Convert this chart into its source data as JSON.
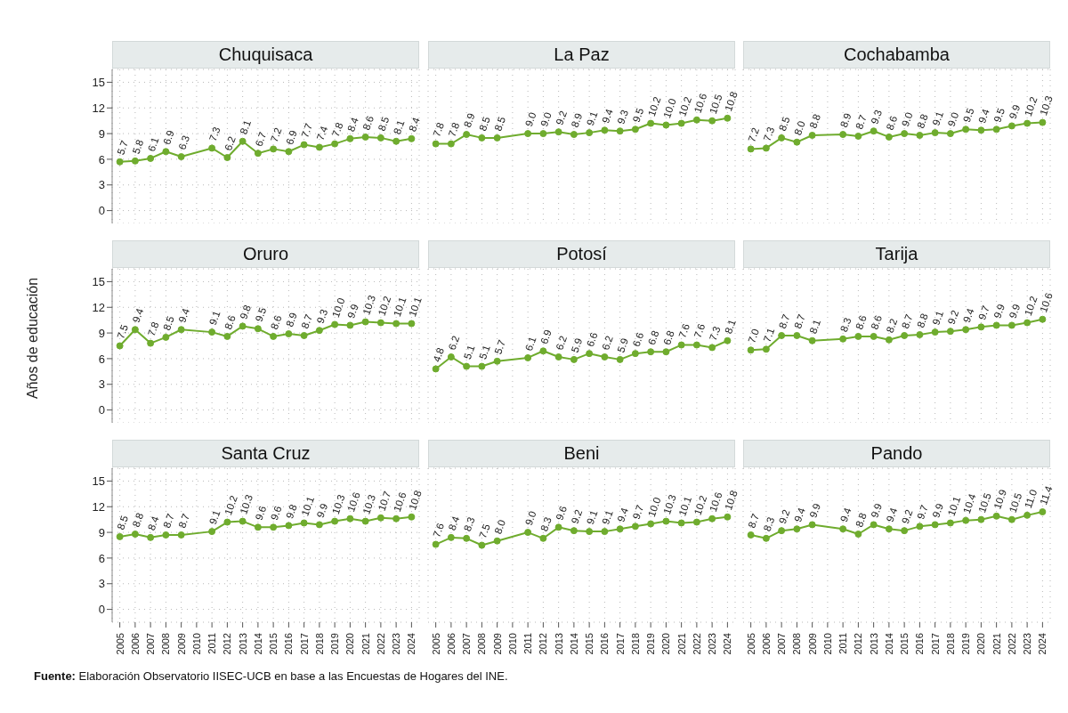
{
  "chart_data": [
    {
      "type": "line",
      "title": "Chuquisaca",
      "x": [
        2005,
        2006,
        2007,
        2008,
        2009,
        2011,
        2012,
        2013,
        2014,
        2015,
        2016,
        2017,
        2018,
        2019,
        2020,
        2021,
        2022,
        2023,
        2024
      ],
      "values": [
        5.7,
        5.8,
        6.1,
        6.9,
        6.3,
        7.3,
        6.2,
        8.1,
        6.7,
        7.2,
        6.9,
        7.7,
        7.4,
        7.8,
        8.4,
        8.6,
        8.5,
        8.1,
        8.4
      ],
      "value_labels": [
        "5.7",
        "5.8",
        "6.1",
        "6.9",
        "6.3",
        "7.3",
        "6.2",
        "8.1",
        "6.7",
        "7.2",
        "6.9",
        "7.7",
        "7.4",
        "7.8",
        "8.4",
        "8.6",
        "8.5",
        "8.1",
        "8.4"
      ],
      "color": "#6fac2e",
      "xlim": [
        2004.5,
        2024.5
      ],
      "xticks": [
        2005,
        2006,
        2007,
        2008,
        2009,
        2010,
        2011,
        2012,
        2013,
        2014,
        2015,
        2016,
        2017,
        2018,
        2019,
        2020,
        2021,
        2022,
        2023,
        2024
      ],
      "ylim": [
        -1.5,
        16.5
      ],
      "yticks": [
        0,
        3,
        6,
        9,
        12,
        15
      ],
      "grid": true,
      "marker": "circle",
      "tick_labels": "y"
    },
    {
      "type": "line",
      "title": "La Paz",
      "x": [
        2005,
        2006,
        2007,
        2008,
        2009,
        2011,
        2012,
        2013,
        2014,
        2015,
        2016,
        2017,
        2018,
        2019,
        2020,
        2021,
        2022,
        2023,
        2024
      ],
      "values": [
        7.8,
        7.8,
        8.9,
        8.5,
        8.5,
        9.0,
        9.0,
        9.2,
        8.9,
        9.1,
        9.4,
        9.3,
        9.5,
        10.2,
        10.0,
        10.2,
        10.6,
        10.5,
        10.8
      ],
      "value_labels": [
        "7.8",
        "7.8",
        "8.9",
        "8.5",
        "8.5",
        "9.0",
        "9.0",
        "9.2",
        "8.9",
        "9.1",
        "9.4",
        "9.3",
        "9.5",
        "10.2",
        "10.0",
        "10.2",
        "10.6",
        "10.5",
        "10.8"
      ],
      "color": "#6fac2e",
      "xlim": [
        2004.5,
        2024.5
      ],
      "xticks": [
        2005,
        2006,
        2007,
        2008,
        2009,
        2010,
        2011,
        2012,
        2013,
        2014,
        2015,
        2016,
        2017,
        2018,
        2019,
        2020,
        2021,
        2022,
        2023,
        2024
      ],
      "ylim": [
        -1.5,
        16.5
      ],
      "yticks": [
        0,
        3,
        6,
        9,
        12,
        15
      ],
      "grid": true,
      "marker": "circle",
      "tick_labels": false
    },
    {
      "type": "line",
      "title": "Cochabamba",
      "x": [
        2005,
        2006,
        2007,
        2008,
        2009,
        2011,
        2012,
        2013,
        2014,
        2015,
        2016,
        2017,
        2018,
        2019,
        2020,
        2021,
        2022,
        2023,
        2024
      ],
      "values": [
        7.2,
        7.3,
        8.5,
        8.0,
        8.8,
        8.9,
        8.7,
        9.3,
        8.6,
        9.0,
        8.8,
        9.1,
        9.0,
        9.5,
        9.4,
        9.5,
        9.9,
        10.2,
        10.3
      ],
      "value_labels": [
        "7.2",
        "7.3",
        "8.5",
        "8.0",
        "8.8",
        "8.9",
        "8.7",
        "9.3",
        "8.6",
        "9.0",
        "8.8",
        "9.1",
        "9.0",
        "9.5",
        "9.4",
        "9.5",
        "9.9",
        "10.2",
        "10.3"
      ],
      "color": "#6fac2e",
      "xlim": [
        2004.5,
        2024.5
      ],
      "xticks": [
        2005,
        2006,
        2007,
        2008,
        2009,
        2010,
        2011,
        2012,
        2013,
        2014,
        2015,
        2016,
        2017,
        2018,
        2019,
        2020,
        2021,
        2022,
        2023,
        2024
      ],
      "ylim": [
        -1.5,
        16.5
      ],
      "yticks": [
        0,
        3,
        6,
        9,
        12,
        15
      ],
      "grid": true,
      "marker": "circle",
      "tick_labels": false
    },
    {
      "type": "line",
      "title": "Oruro",
      "ylabel": "Años de educación",
      "x": [
        2005,
        2006,
        2007,
        2008,
        2009,
        2011,
        2012,
        2013,
        2014,
        2015,
        2016,
        2017,
        2018,
        2019,
        2020,
        2021,
        2022,
        2023,
        2024
      ],
      "values": [
        7.5,
        9.4,
        7.8,
        8.5,
        9.4,
        9.1,
        8.6,
        9.8,
        9.5,
        8.6,
        8.9,
        8.7,
        9.3,
        10.0,
        9.9,
        10.3,
        10.2,
        10.1,
        10.1
      ],
      "value_labels": [
        "7.5",
        "9.4",
        "7.8",
        "8.5",
        "9.4",
        "9.1",
        "8.6",
        "9.8",
        "9.5",
        "8.6",
        "8.9",
        "8.7",
        "9.3",
        "10.0",
        "9.9",
        "10.3",
        "10.2",
        "10.1",
        "10.1"
      ],
      "color": "#6fac2e",
      "xlim": [
        2004.5,
        2024.5
      ],
      "xticks": [
        2005,
        2006,
        2007,
        2008,
        2009,
        2010,
        2011,
        2012,
        2013,
        2014,
        2015,
        2016,
        2017,
        2018,
        2019,
        2020,
        2021,
        2022,
        2023,
        2024
      ],
      "ylim": [
        -1.5,
        16.5
      ],
      "yticks": [
        0,
        3,
        6,
        9,
        12,
        15
      ],
      "grid": true,
      "marker": "circle",
      "tick_labels": "y"
    },
    {
      "type": "line",
      "title": "Potosí",
      "x": [
        2005,
        2006,
        2007,
        2008,
        2009,
        2011,
        2012,
        2013,
        2014,
        2015,
        2016,
        2017,
        2018,
        2019,
        2020,
        2021,
        2022,
        2023,
        2024
      ],
      "values": [
        4.8,
        6.2,
        5.1,
        5.1,
        5.7,
        6.1,
        6.9,
        6.2,
        5.9,
        6.6,
        6.2,
        5.9,
        6.6,
        6.8,
        6.8,
        7.6,
        7.6,
        7.3,
        8.1
      ],
      "value_labels": [
        "4.8",
        "6.2",
        "5.1",
        "5.1",
        "5.7",
        "6.1",
        "6.9",
        "6.2",
        "5.9",
        "6.6",
        "6.2",
        "5.9",
        "6.6",
        "6.8",
        "6.8",
        "7.6",
        "7.6",
        "7.3",
        "8.1"
      ],
      "color": "#6fac2e",
      "xlim": [
        2004.5,
        2024.5
      ],
      "xticks": [
        2005,
        2006,
        2007,
        2008,
        2009,
        2010,
        2011,
        2012,
        2013,
        2014,
        2015,
        2016,
        2017,
        2018,
        2019,
        2020,
        2021,
        2022,
        2023,
        2024
      ],
      "ylim": [
        -1.5,
        16.5
      ],
      "yticks": [
        0,
        3,
        6,
        9,
        12,
        15
      ],
      "grid": true,
      "marker": "circle",
      "tick_labels": false
    },
    {
      "type": "line",
      "title": "Tarija",
      "x": [
        2005,
        2006,
        2007,
        2008,
        2009,
        2011,
        2012,
        2013,
        2014,
        2015,
        2016,
        2017,
        2018,
        2019,
        2020,
        2021,
        2022,
        2023,
        2024
      ],
      "values": [
        7.0,
        7.1,
        8.7,
        8.7,
        8.1,
        8.3,
        8.6,
        8.6,
        8.2,
        8.7,
        8.8,
        9.1,
        9.2,
        9.4,
        9.7,
        9.9,
        9.9,
        10.2,
        10.6
      ],
      "value_labels": [
        "7.0",
        "7.1",
        "8.7",
        "8.7",
        "8.1",
        "8.3",
        "8.6",
        "8.6",
        "8.2",
        "8.7",
        "8.8",
        "9.1",
        "9.2",
        "9.4",
        "9.7",
        "9.9",
        "9.9",
        "10.2",
        "10.6"
      ],
      "color": "#6fac2e",
      "xlim": [
        2004.5,
        2024.5
      ],
      "xticks": [
        2005,
        2006,
        2007,
        2008,
        2009,
        2010,
        2011,
        2012,
        2013,
        2014,
        2015,
        2016,
        2017,
        2018,
        2019,
        2020,
        2021,
        2022,
        2023,
        2024
      ],
      "ylim": [
        -1.5,
        16.5
      ],
      "yticks": [
        0,
        3,
        6,
        9,
        12,
        15
      ],
      "grid": true,
      "marker": "circle",
      "tick_labels": false
    },
    {
      "type": "line",
      "title": "Santa Cruz",
      "annotations": [
        "Fuente: Elaboración Observatorio IISEC-UCB en base a las Encuestas de Hogares del INE."
      ],
      "x": [
        2005,
        2006,
        2007,
        2008,
        2009,
        2011,
        2012,
        2013,
        2014,
        2015,
        2016,
        2017,
        2018,
        2019,
        2020,
        2021,
        2022,
        2023,
        2024
      ],
      "values": [
        8.5,
        8.8,
        8.4,
        8.7,
        8.7,
        9.1,
        10.2,
        10.3,
        9.6,
        9.6,
        9.8,
        10.1,
        9.9,
        10.3,
        10.6,
        10.3,
        10.7,
        10.6,
        10.8
      ],
      "value_labels": [
        "8.5",
        "8.8",
        "8.4",
        "8.7",
        "8.7",
        "9.1",
        "10.2",
        "10.3",
        "9.6",
        "9.6",
        "9.8",
        "10.1",
        "9.9",
        "10.3",
        "10.6",
        "10.3",
        "10.7",
        "10.6",
        "10.8"
      ],
      "color": "#6fac2e",
      "xlim": [
        2004.5,
        2024.5
      ],
      "xticks": [
        2005,
        2006,
        2007,
        2008,
        2009,
        2010,
        2011,
        2012,
        2013,
        2014,
        2015,
        2016,
        2017,
        2018,
        2019,
        2020,
        2021,
        2022,
        2023,
        2024
      ],
      "ylim": [
        -1.5,
        16.5
      ],
      "yticks": [
        0,
        3,
        6,
        9,
        12,
        15
      ],
      "grid": true,
      "marker": "circle"
    },
    {
      "type": "line",
      "title": "Beni",
      "x": [
        2005,
        2006,
        2007,
        2008,
        2009,
        2011,
        2012,
        2013,
        2014,
        2015,
        2016,
        2017,
        2018,
        2019,
        2020,
        2021,
        2022,
        2023,
        2024
      ],
      "values": [
        7.6,
        8.4,
        8.3,
        7.5,
        8.0,
        9.0,
        8.3,
        9.6,
        9.2,
        9.1,
        9.1,
        9.4,
        9.7,
        10.0,
        10.3,
        10.1,
        10.2,
        10.6,
        10.8
      ],
      "value_labels": [
        "7.6",
        "8.4",
        "8.3",
        "7.5",
        "8.0",
        "9.0",
        "8.3",
        "9.6",
        "9.2",
        "9.1",
        "9.1",
        "9.4",
        "9.7",
        "10.0",
        "10.3",
        "10.1",
        "10.2",
        "10.6",
        "10.8"
      ],
      "color": "#6fac2e",
      "xlim": [
        2004.5,
        2024.5
      ],
      "xticks": [
        2005,
        2006,
        2007,
        2008,
        2009,
        2010,
        2011,
        2012,
        2013,
        2014,
        2015,
        2016,
        2017,
        2018,
        2019,
        2020,
        2021,
        2022,
        2023,
        2024
      ],
      "ylim": [
        -1.5,
        16.5
      ],
      "yticks": [
        0,
        3,
        6,
        9,
        12,
        15
      ],
      "grid": true,
      "marker": "circle",
      "tick_labels": "x"
    },
    {
      "type": "line",
      "title": "Pando",
      "x": [
        2005,
        2006,
        2007,
        2008,
        2009,
        2011,
        2012,
        2013,
        2014,
        2015,
        2016,
        2017,
        2018,
        2019,
        2020,
        2021,
        2022,
        2023,
        2024
      ],
      "values": [
        8.7,
        8.3,
        9.2,
        9.4,
        9.9,
        9.4,
        8.8,
        9.9,
        9.4,
        9.2,
        9.7,
        9.9,
        10.1,
        10.4,
        10.5,
        10.9,
        10.5,
        11.0,
        11.4
      ],
      "value_labels": [
        "8.7",
        "8.3",
        "9.2",
        "9.4",
        "9.9",
        "9.4",
        "8.8",
        "9.9",
        "9.4",
        "9.2",
        "9.7",
        "9.9",
        "10.1",
        "10.4",
        "10.5",
        "10.9",
        "10.5",
        "11.0",
        "11.4"
      ],
      "color": "#6fac2e",
      "xlim": [
        2004.5,
        2024.5
      ],
      "xticks": [
        2005,
        2006,
        2007,
        2008,
        2009,
        2010,
        2011,
        2012,
        2013,
        2014,
        2015,
        2016,
        2017,
        2018,
        2019,
        2020,
        2021,
        2022,
        2023,
        2024
      ],
      "ylim": [
        -1.5,
        16.5
      ],
      "yticks": [
        0,
        3,
        6,
        9,
        12,
        15
      ],
      "grid": true,
      "marker": "circle",
      "tick_labels": "x"
    }
  ]
}
